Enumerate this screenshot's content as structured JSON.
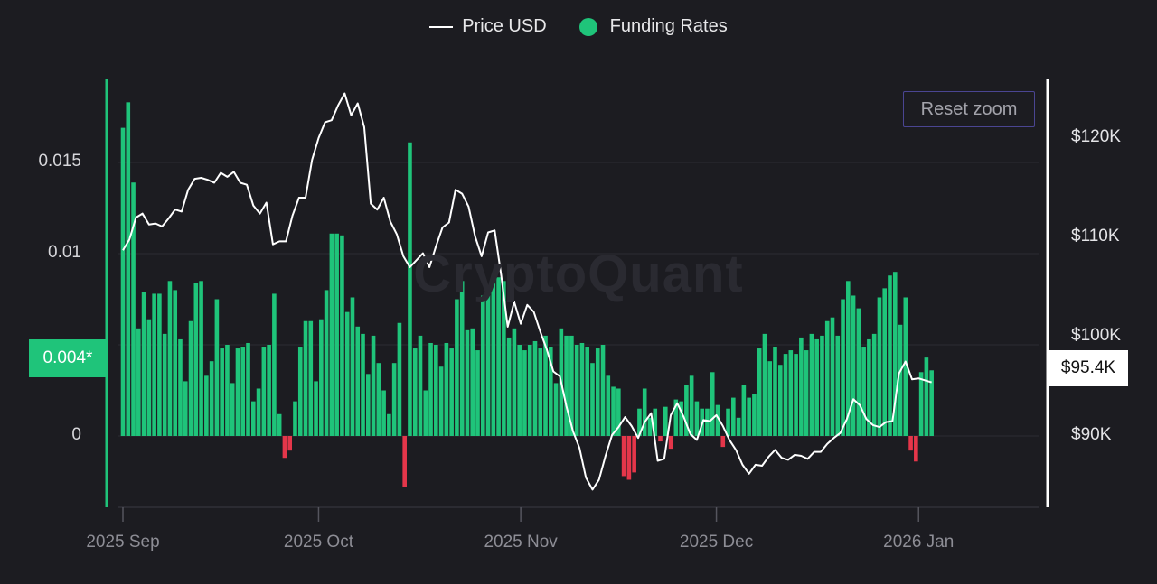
{
  "legend": {
    "price_label": "Price USD",
    "funding_label": "Funding Rates"
  },
  "reset_zoom_label": "Reset zoom",
  "watermark": "CryptoQuant",
  "colors": {
    "background": "#1c1c21",
    "positive_bar": "#1fc47a",
    "negative_bar": "#e5364a",
    "price_line": "#ffffff",
    "left_axis": "#1fc47a",
    "grid": "#2c2c33"
  },
  "current_funding_badge": "0.004*",
  "current_price_badge": "$95.4K",
  "chart_data": {
    "type": "bar+line",
    "grid": true,
    "legend_position": "top-center",
    "y_left": {
      "ticks": [
        0,
        0.005,
        0.01,
        0.015
      ],
      "tick_labels": [
        "0",
        "",
        "0.01",
        "0.015"
      ],
      "range": [
        -0.004,
        0.0196
      ]
    },
    "y_right": {
      "ticks": [
        90000,
        100000,
        110000,
        120000
      ],
      "tick_labels": [
        "$90K",
        "$100K",
        "$110K",
        "$120K"
      ],
      "range": [
        84000,
        127000
      ]
    },
    "x_ticks": [
      {
        "label": "2025 Sep",
        "index": 0
      },
      {
        "label": "2025 Oct",
        "index": 30
      },
      {
        "label": "2025 Nov",
        "index": 61
      },
      {
        "label": "2025 Dec",
        "index": 91
      },
      {
        "label": "2026 Jan",
        "index": 122
      }
    ],
    "x_range_days": [
      0,
      138
    ],
    "series": [
      {
        "name": "Funding Rates",
        "kind": "bar",
        "values": [
          0.0169,
          0.0183,
          0.0139,
          0.0059,
          0.0079,
          0.0064,
          0.0078,
          0.0078,
          0.0056,
          0.0085,
          0.008,
          0.0053,
          0.003,
          0.0063,
          0.0084,
          0.0085,
          0.0033,
          0.0041,
          0.0075,
          0.0048,
          0.005,
          0.0029,
          0.0048,
          0.0049,
          0.0051,
          0.0019,
          0.0026,
          0.0049,
          0.005,
          0.0078,
          0.0012,
          -0.0012,
          -0.0008,
          0.0019,
          0.0049,
          0.0063,
          0.0063,
          0.003,
          0.0064,
          0.008,
          0.0111,
          0.0111,
          0.011,
          0.0068,
          0.0076,
          0.006,
          0.0056,
          0.0034,
          0.0055,
          0.004,
          0.0025,
          0.0012,
          0.004,
          0.0062,
          -0.0028,
          0.0161,
          0.0048,
          0.0055,
          0.0025,
          0.0051,
          0.005,
          0.0038,
          0.0051,
          0.0048,
          0.0075,
          0.0085,
          0.0058,
          0.0059,
          0.0047,
          0.0077,
          0.008,
          0.0088,
          0.0087,
          0.0085,
          0.0054,
          0.0059,
          0.005,
          0.0047,
          0.005,
          0.0052,
          0.0048,
          0.0055,
          0.0049,
          0.0029,
          0.0059,
          0.0055,
          0.0055,
          0.005,
          0.0051,
          0.0049,
          0.004,
          0.0048,
          0.005,
          0.0033,
          0.0027,
          0.0026,
          -0.0022,
          -0.0024,
          -0.002,
          0.0015,
          0.0026,
          0.001,
          0.0015,
          -0.0003,
          0.0016,
          -0.0007,
          0.002,
          0.0019,
          0.0028,
          0.0033,
          0.0019,
          0.0015,
          0.0015,
          0.0035,
          0.0017,
          -0.0006,
          0.0015,
          0.0021,
          0.001,
          0.0028,
          0.0021,
          0.0023,
          0.0048,
          0.0056,
          0.0041,
          0.0049,
          0.0039,
          0.0045,
          0.0047,
          0.0045,
          0.0054,
          0.0047,
          0.0056,
          0.0053,
          0.0055,
          0.0063,
          0.0065,
          0.0055,
          0.0075,
          0.0085,
          0.0077,
          0.007,
          0.0049,
          0.0053,
          0.0056,
          0.0076,
          0.0081,
          0.0088,
          0.009,
          0.0061,
          0.0076,
          -0.0008,
          -0.0014,
          0.0035,
          0.0043,
          0.0036
        ]
      },
      {
        "name": "Price USD",
        "kind": "line",
        "points": [
          [
            0,
            108700
          ],
          [
            1,
            109800
          ],
          [
            2,
            112000
          ],
          [
            3,
            112400
          ],
          [
            4,
            111300
          ],
          [
            5,
            111400
          ],
          [
            6,
            111100
          ],
          [
            7,
            111900
          ],
          [
            8,
            112800
          ],
          [
            9,
            112600
          ],
          [
            10,
            114800
          ],
          [
            11,
            115900
          ],
          [
            12,
            116000
          ],
          [
            13,
            115800
          ],
          [
            14,
            115500
          ],
          [
            15,
            116500
          ],
          [
            16,
            116100
          ],
          [
            17,
            116600
          ],
          [
            18,
            115500
          ],
          [
            19,
            115300
          ],
          [
            20,
            113200
          ],
          [
            21,
            112400
          ],
          [
            22,
            113500
          ],
          [
            23,
            109300
          ],
          [
            24,
            109600
          ],
          [
            25,
            109600
          ],
          [
            26,
            112200
          ],
          [
            27,
            114000
          ],
          [
            28,
            114000
          ],
          [
            29,
            117800
          ],
          [
            30,
            120000
          ],
          [
            31,
            121600
          ],
          [
            32,
            121800
          ],
          [
            33,
            123300
          ],
          [
            34,
            124500
          ],
          [
            35,
            122300
          ],
          [
            36,
            123500
          ],
          [
            37,
            121100
          ],
          [
            38,
            113400
          ],
          [
            39,
            112800
          ],
          [
            40,
            114000
          ],
          [
            41,
            111600
          ],
          [
            42,
            110300
          ],
          [
            43,
            108100
          ],
          [
            44,
            107000
          ],
          [
            45,
            107700
          ],
          [
            46,
            108400
          ],
          [
            47,
            107000
          ],
          [
            48,
            109100
          ],
          [
            49,
            111000
          ],
          [
            50,
            111500
          ],
          [
            51,
            114800
          ],
          [
            52,
            114400
          ],
          [
            53,
            113100
          ],
          [
            54,
            110100
          ],
          [
            55,
            108100
          ],
          [
            56,
            110500
          ],
          [
            57,
            110700
          ],
          [
            58,
            106200
          ],
          [
            59,
            101000
          ],
          [
            60,
            103500
          ],
          [
            61,
            101300
          ],
          [
            62,
            103200
          ],
          [
            63,
            102500
          ],
          [
            64,
            100500
          ],
          [
            65,
            98700
          ],
          [
            66,
            96500
          ],
          [
            67,
            96000
          ],
          [
            68,
            93000
          ],
          [
            69,
            90500
          ],
          [
            70,
            88800
          ],
          [
            71,
            85800
          ],
          [
            72,
            84600
          ],
          [
            73,
            85600
          ],
          [
            74,
            88000
          ],
          [
            75,
            90100
          ],
          [
            76,
            90900
          ],
          [
            77,
            91900
          ],
          [
            78,
            91000
          ],
          [
            79,
            89800
          ],
          [
            80,
            91400
          ],
          [
            81,
            92300
          ],
          [
            82,
            87500
          ],
          [
            83,
            87700
          ],
          [
            84,
            92100
          ],
          [
            85,
            93300
          ],
          [
            86,
            91900
          ],
          [
            87,
            90200
          ],
          [
            88,
            89600
          ],
          [
            89,
            91600
          ],
          [
            90,
            91500
          ],
          [
            91,
            92100
          ],
          [
            92,
            91000
          ],
          [
            93,
            89600
          ],
          [
            94,
            88600
          ],
          [
            95,
            87100
          ],
          [
            96,
            86200
          ],
          [
            97,
            87100
          ],
          [
            98,
            87000
          ],
          [
            99,
            87900
          ],
          [
            100,
            88600
          ],
          [
            101,
            87800
          ],
          [
            102,
            87600
          ],
          [
            103,
            88100
          ],
          [
            104,
            88000
          ],
          [
            105,
            87700
          ],
          [
            106,
            88400
          ],
          [
            107,
            88400
          ],
          [
            108,
            89200
          ],
          [
            109,
            89800
          ],
          [
            110,
            90300
          ],
          [
            111,
            91700
          ],
          [
            112,
            93700
          ],
          [
            113,
            93100
          ],
          [
            114,
            91700
          ],
          [
            115,
            91100
          ],
          [
            116,
            90900
          ],
          [
            117,
            91400
          ],
          [
            118,
            91500
          ],
          [
            119,
            96300
          ],
          [
            120,
            97500
          ],
          [
            121,
            95700
          ],
          [
            122,
            95800
          ],
          [
            123,
            95600
          ],
          [
            124,
            95400
          ]
        ]
      }
    ]
  }
}
